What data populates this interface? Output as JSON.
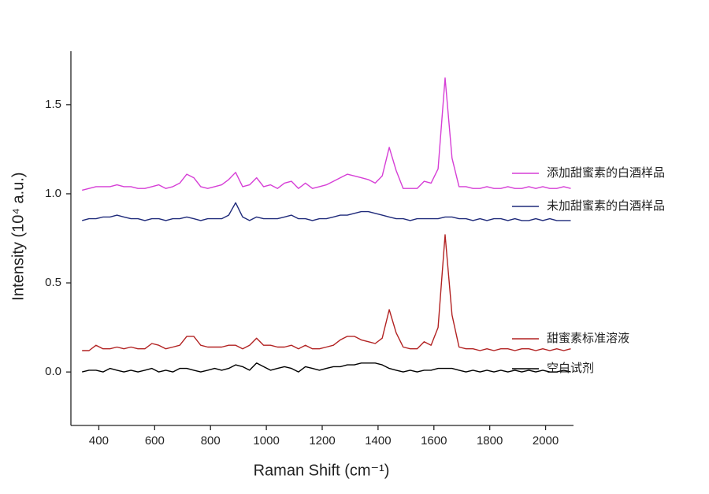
{
  "chart_data": {
    "type": "line",
    "x_label": "Raman Shift (cm⁻¹)",
    "y_label": "Intensity (10⁴ a.u.)",
    "x": [
      340,
      365,
      390,
      415,
      440,
      465,
      490,
      515,
      540,
      565,
      590,
      615,
      640,
      665,
      690,
      715,
      740,
      765,
      790,
      815,
      840,
      865,
      890,
      915,
      940,
      965,
      990,
      1015,
      1040,
      1065,
      1090,
      1115,
      1140,
      1165,
      1190,
      1215,
      1240,
      1265,
      1290,
      1315,
      1340,
      1365,
      1390,
      1415,
      1440,
      1465,
      1490,
      1515,
      1540,
      1565,
      1590,
      1615,
      1640,
      1665,
      1690,
      1715,
      1740,
      1765,
      1790,
      1815,
      1840,
      1865,
      1890,
      1915,
      1940,
      1965,
      1990,
      2015,
      2040,
      2065,
      2090
    ],
    "series": [
      {
        "name": "添加甜蜜素的白酒样品",
        "color": "#d63fd6",
        "values": [
          1.02,
          1.03,
          1.04,
          1.04,
          1.04,
          1.05,
          1.04,
          1.04,
          1.03,
          1.03,
          1.04,
          1.05,
          1.03,
          1.04,
          1.06,
          1.11,
          1.09,
          1.04,
          1.03,
          1.04,
          1.05,
          1.08,
          1.12,
          1.04,
          1.05,
          1.09,
          1.04,
          1.05,
          1.03,
          1.06,
          1.07,
          1.03,
          1.06,
          1.03,
          1.04,
          1.05,
          1.07,
          1.09,
          1.11,
          1.1,
          1.09,
          1.08,
          1.06,
          1.1,
          1.26,
          1.13,
          1.03,
          1.03,
          1.03,
          1.07,
          1.06,
          1.14,
          1.65,
          1.2,
          1.04,
          1.04,
          1.03,
          1.03,
          1.04,
          1.03,
          1.03,
          1.04,
          1.03,
          1.03,
          1.04,
          1.03,
          1.04,
          1.03,
          1.03,
          1.04,
          1.03
        ]
      },
      {
        "name": "未加甜蜜素的白酒样品",
        "color": "#1f2a7a",
        "values": [
          0.85,
          0.86,
          0.86,
          0.87,
          0.87,
          0.88,
          0.87,
          0.86,
          0.86,
          0.85,
          0.86,
          0.86,
          0.85,
          0.86,
          0.86,
          0.87,
          0.86,
          0.85,
          0.86,
          0.86,
          0.86,
          0.88,
          0.95,
          0.87,
          0.85,
          0.87,
          0.86,
          0.86,
          0.86,
          0.87,
          0.88,
          0.86,
          0.86,
          0.85,
          0.86,
          0.86,
          0.87,
          0.88,
          0.88,
          0.89,
          0.9,
          0.9,
          0.89,
          0.88,
          0.87,
          0.86,
          0.86,
          0.85,
          0.86,
          0.86,
          0.86,
          0.86,
          0.87,
          0.87,
          0.86,
          0.86,
          0.85,
          0.86,
          0.85,
          0.86,
          0.86,
          0.85,
          0.86,
          0.85,
          0.85,
          0.86,
          0.85,
          0.86,
          0.85,
          0.85,
          0.85
        ]
      },
      {
        "name": "甜蜜素标准溶液",
        "color": "#b22222",
        "values": [
          0.12,
          0.12,
          0.15,
          0.13,
          0.13,
          0.14,
          0.13,
          0.14,
          0.13,
          0.13,
          0.16,
          0.15,
          0.13,
          0.14,
          0.15,
          0.2,
          0.2,
          0.15,
          0.14,
          0.14,
          0.14,
          0.15,
          0.15,
          0.13,
          0.15,
          0.19,
          0.15,
          0.15,
          0.14,
          0.14,
          0.15,
          0.13,
          0.15,
          0.13,
          0.13,
          0.14,
          0.15,
          0.18,
          0.2,
          0.2,
          0.18,
          0.17,
          0.16,
          0.19,
          0.35,
          0.22,
          0.14,
          0.13,
          0.13,
          0.17,
          0.15,
          0.25,
          0.77,
          0.32,
          0.14,
          0.13,
          0.13,
          0.12,
          0.13,
          0.12,
          0.13,
          0.13,
          0.12,
          0.13,
          0.13,
          0.12,
          0.13,
          0.12,
          0.13,
          0.12,
          0.13
        ]
      },
      {
        "name": "空白试剂",
        "color": "#000000",
        "values": [
          0.0,
          0.01,
          0.01,
          0.0,
          0.02,
          0.01,
          0.0,
          0.01,
          0.0,
          0.01,
          0.02,
          0.0,
          0.01,
          0.0,
          0.02,
          0.02,
          0.01,
          0.0,
          0.01,
          0.02,
          0.01,
          0.02,
          0.04,
          0.03,
          0.01,
          0.05,
          0.03,
          0.01,
          0.02,
          0.03,
          0.02,
          0.0,
          0.03,
          0.02,
          0.01,
          0.02,
          0.03,
          0.03,
          0.04,
          0.04,
          0.05,
          0.05,
          0.05,
          0.04,
          0.02,
          0.01,
          0.0,
          0.01,
          0.0,
          0.01,
          0.01,
          0.02,
          0.02,
          0.02,
          0.01,
          0.0,
          0.01,
          0.0,
          0.01,
          0.0,
          0.01,
          0.0,
          0.01,
          0.0,
          0.01,
          0.0,
          0.01,
          0.0,
          0.0,
          0.01,
          0.0
        ]
      }
    ],
    "xlim": [
      300,
      2100
    ],
    "xticks": [
      400,
      600,
      800,
      1000,
      1200,
      1400,
      1600,
      1800,
      2000
    ],
    "ylim": [
      -0.3,
      1.8
    ],
    "yticks": [
      {
        "value": 0,
        "label": "0.0"
      },
      0.5,
      {
        "value": 1,
        "label": "1.0"
      },
      1.5
    ]
  }
}
